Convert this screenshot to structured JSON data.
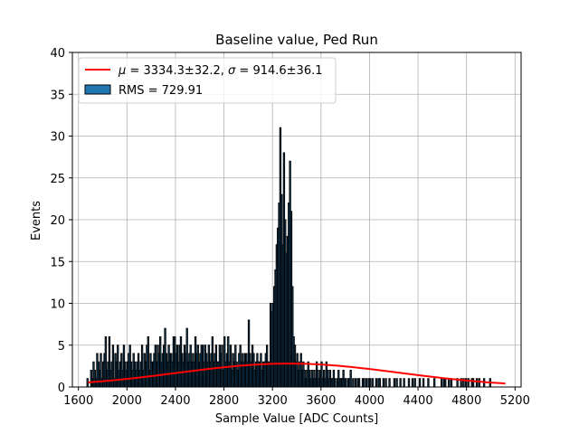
{
  "chart_data": {
    "type": "bar",
    "title": "Baseline value, Ped Run",
    "xlabel": "Sample Value [ADC Counts]",
    "ylabel": "Events",
    "xlim": [
      1550,
      5250
    ],
    "ylim": [
      0,
      40
    ],
    "xticks": [
      1600,
      2000,
      2400,
      2800,
      3200,
      3600,
      4000,
      4400,
      4800,
      5200
    ],
    "yticks": [
      0,
      5,
      10,
      15,
      20,
      25,
      30,
      35,
      40
    ],
    "grid": true,
    "legend_position": "top-left",
    "colors": {
      "histogram_fill": "#1f77b4",
      "histogram_edge": "#000000",
      "fit_line": "#ff0000",
      "grid": "#b0b0b0"
    },
    "legend": [
      {
        "kind": "line",
        "mu_symbol": "μ",
        "sigma_symbol": "σ",
        "mu_text": " = 3334.3±32.2, ",
        "sigma_text": " = 914.6±36.1",
        "color": "#ff0000"
      },
      {
        "kind": "patch",
        "label": "RMS = 729.91",
        "color": "#1f77b4"
      }
    ],
    "histogram": {
      "bin_range": [
        1670,
        5120
      ],
      "bin_width": 10,
      "counts": [
        1,
        0,
        0,
        2,
        1,
        3,
        2,
        1,
        4,
        3,
        2,
        4,
        1,
        3,
        4,
        6,
        2,
        3,
        6,
        2,
        3,
        5,
        1,
        4,
        3,
        5,
        2,
        3,
        4,
        2,
        5,
        3,
        2,
        3,
        4,
        5,
        3,
        2,
        4,
        3,
        2,
        3,
        4,
        2,
        3,
        5,
        2,
        4,
        3,
        5,
        6,
        2,
        4,
        3,
        3,
        4,
        5,
        3,
        5,
        4,
        6,
        3,
        4,
        5,
        7,
        4,
        3,
        5,
        4,
        4,
        3,
        6,
        6,
        4,
        5,
        3,
        5,
        6,
        4,
        3,
        5,
        4,
        7,
        3,
        4,
        5,
        3,
        4,
        3,
        6,
        4,
        5,
        3,
        4,
        5,
        5,
        3,
        5,
        4,
        3,
        5,
        3,
        4,
        6,
        3,
        4,
        5,
        3,
        3,
        5,
        4,
        5,
        2,
        6,
        3,
        4,
        6,
        3,
        5,
        2,
        4,
        3,
        5,
        3,
        2,
        4,
        5,
        3,
        4,
        3,
        4,
        4,
        3,
        8,
        4,
        3,
        5,
        4,
        2,
        3,
        4,
        3,
        3,
        4,
        2,
        3,
        3,
        4,
        5,
        3,
        3,
        10,
        9,
        10,
        12,
        14,
        17,
        19,
        22,
        31,
        23,
        17,
        28,
        20,
        16,
        18,
        22,
        27,
        21,
        12,
        6,
        5,
        3,
        4,
        2,
        3,
        4,
        2,
        3,
        2,
        1,
        2,
        3,
        2,
        1,
        2,
        1,
        2,
        1,
        3,
        2,
        1,
        2,
        3,
        1,
        2,
        1,
        3,
        2,
        1,
        2,
        1,
        1,
        2,
        1,
        0,
        1,
        2,
        1,
        1,
        1,
        2,
        1,
        1,
        0,
        1,
        1,
        2,
        0,
        1,
        0,
        1,
        0,
        1,
        1,
        0,
        0,
        1,
        1,
        0,
        1,
        0,
        1,
        1,
        0,
        1,
        0,
        0,
        1,
        0,
        1,
        1,
        0,
        0,
        1,
        0,
        1,
        0,
        0,
        1,
        0,
        0,
        0,
        1,
        0,
        1,
        0,
        0,
        1,
        0,
        0,
        1,
        0,
        0,
        0,
        1,
        0,
        0,
        1,
        0,
        1,
        0,
        0,
        0,
        1,
        0,
        0,
        1,
        0,
        0,
        0,
        1,
        0,
        0,
        0,
        0,
        1,
        0,
        0,
        0,
        0,
        0,
        1,
        0,
        1,
        1,
        0,
        0,
        1,
        0,
        1,
        0,
        0,
        0,
        0,
        1,
        0,
        0,
        1,
        0,
        1,
        0,
        1,
        0,
        1,
        0,
        0,
        1,
        1,
        0,
        0,
        1,
        0,
        1,
        0,
        0,
        0,
        1,
        0,
        0,
        0,
        0,
        1
      ]
    },
    "fit": {
      "type": "gaussian",
      "mu": 3334.3,
      "sigma": 914.6,
      "amplitude": 2.8,
      "x_range": [
        1680,
        5120
      ]
    }
  }
}
